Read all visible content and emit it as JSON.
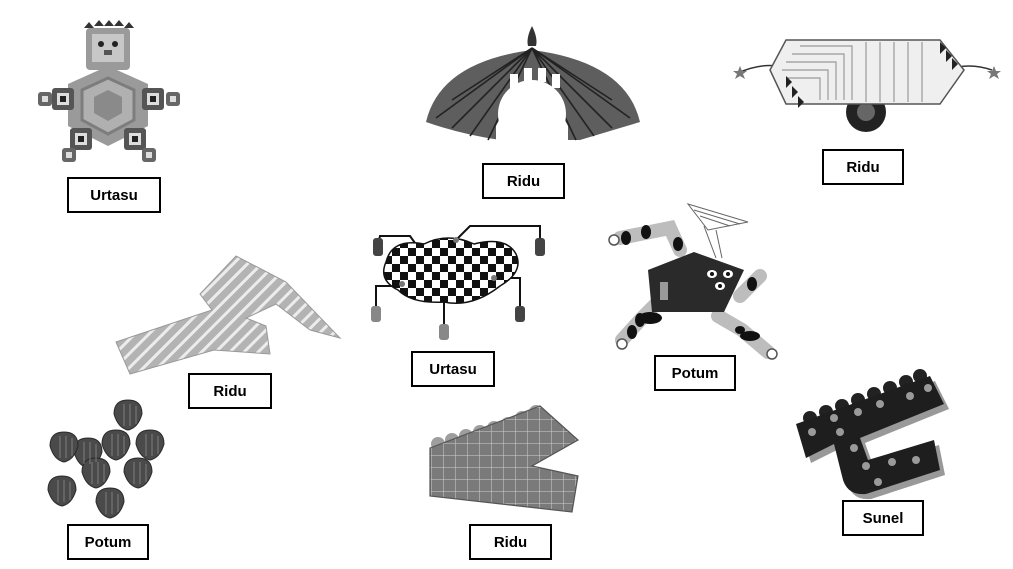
{
  "labels": {
    "urtasu_top": "Urtasu",
    "ridu_dome": "Ridu",
    "ridu_cart": "Ridu",
    "ridu_zigzag": "Ridu",
    "urtasu_checker": "Urtasu",
    "potum_legs": "Potum",
    "potum_seeds": "Potum",
    "ridu_grid": "Ridu",
    "sunel_hook": "Sunel"
  },
  "palette": {
    "dark": "#2b2b2b",
    "mid": "#6a6a6a",
    "light": "#b5b5b5",
    "pale": "#e0e0e0"
  }
}
